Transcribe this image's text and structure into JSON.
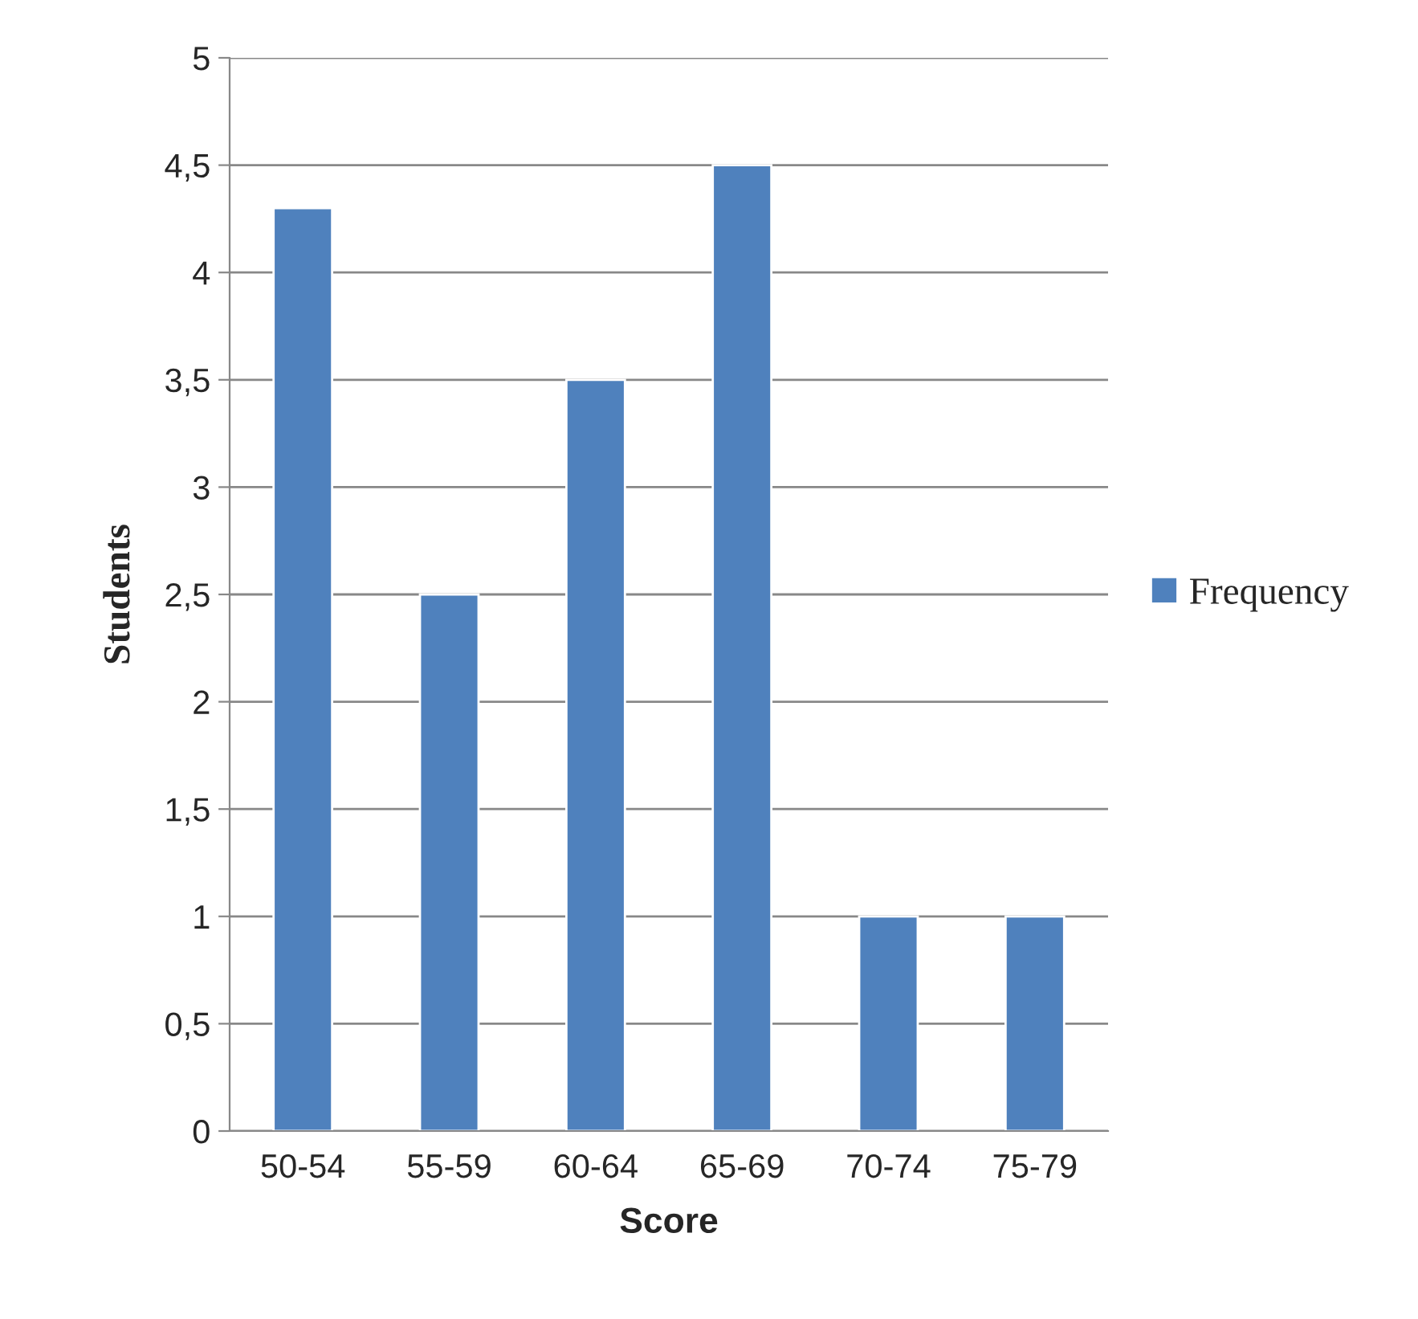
{
  "chart_data": {
    "type": "bar",
    "xlabel": "Score",
    "ylabel": "Students",
    "categories": [
      "50-54",
      "55-59",
      "60-64",
      "65-69",
      "70-74",
      "75-79"
    ],
    "series": [
      {
        "name": "Frequency",
        "color": "#4f81bd",
        "values": [
          4.3,
          2.5,
          3.5,
          4.5,
          1,
          1
        ]
      }
    ],
    "ylim": [
      0,
      5
    ],
    "yticks": [
      0,
      {
        "value": 0.5,
        "label": "0,5"
      },
      1,
      {
        "value": 1.5,
        "label": "1,5"
      },
      2,
      {
        "value": 2.5,
        "label": "2,5"
      },
      3,
      {
        "value": 3.5,
        "label": "3,5"
      },
      4,
      {
        "value": 4.5,
        "label": "4,5"
      },
      5
    ],
    "grid": "y",
    "legend": "right"
  }
}
